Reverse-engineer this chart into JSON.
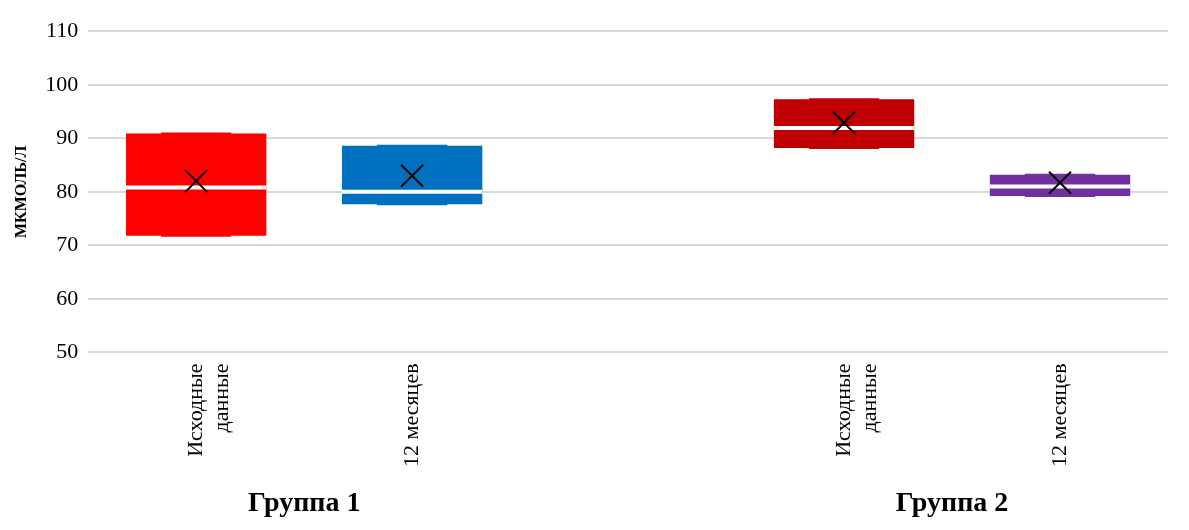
{
  "chart_data": {
    "type": "box",
    "ylabel": "МКМОЛЬ/Л",
    "categories": [
      "Исходные данные",
      "12 месяцев",
      null,
      "Исходные данные",
      "12 месяцев"
    ],
    "colors": [
      "#ff0000",
      "#0070c0",
      "#ffffff",
      "#c00000",
      "#7030a0"
    ],
    "boxes": [
      {
        "low": 71.8,
        "q1": 71.8,
        "median": 80.8,
        "q3": 90.9,
        "high": 90.9,
        "mean": 82
      },
      {
        "low": 77.7,
        "q1": 77.7,
        "median": 80,
        "q3": 88.6,
        "high": 88.6,
        "mean": 83
      },
      null,
      {
        "low": 88.2,
        "q1": 88.2,
        "median": 91.9,
        "q3": 97.3,
        "high": 97.3,
        "mean": 92.9
      },
      {
        "low": 79.2,
        "q1": 79.2,
        "median": 81,
        "q3": 83.2,
        "high": 83.2,
        "mean": 81.7
      }
    ],
    "ylim": [
      50,
      110
    ],
    "yticks": [
      50,
      60,
      70,
      80,
      90,
      100,
      110
    ],
    "grid": "y",
    "legend": false,
    "annotations": [
      "Группа 1",
      "Группа 2"
    ]
  }
}
